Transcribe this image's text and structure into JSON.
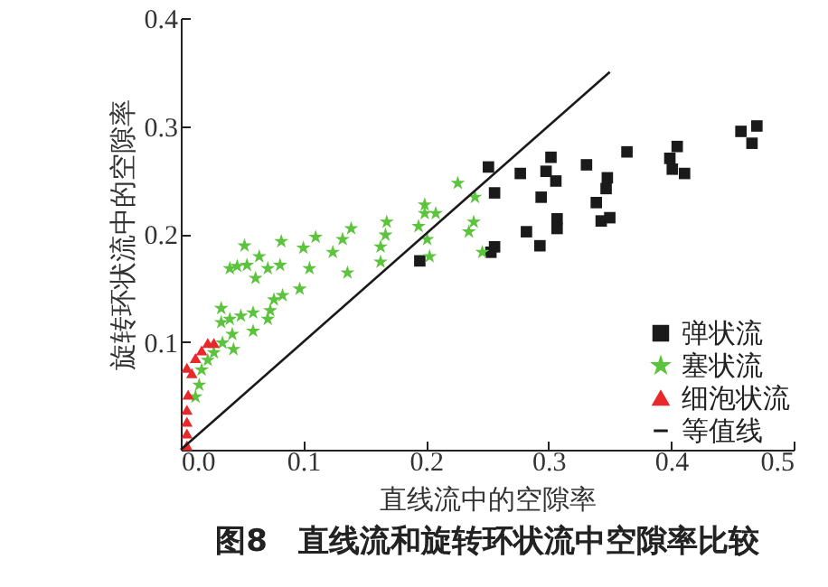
{
  "chart_data": {
    "type": "scatter",
    "title": "图8　直线流和旋转环状流中空隙率比较",
    "xlabel": "直线流中的空隙率",
    "ylabel": "旋转环状流中的空隙率",
    "xlim": [
      0,
      0.5
    ],
    "ylim": [
      0,
      0.4
    ],
    "xticks": [
      {
        "value": 0,
        "label": "0.0"
      },
      {
        "value": 0.1,
        "label": "0.1"
      },
      {
        "value": 0.2,
        "label": "0.2"
      },
      {
        "value": 0.3,
        "label": "0.3"
      },
      {
        "value": 0.4,
        "label": "0.4"
      },
      {
        "value": 0.5,
        "label": "0.5"
      }
    ],
    "yticks": [
      {
        "value": 0,
        "label": null
      },
      {
        "value": 0.1,
        "label": "0.1"
      },
      {
        "value": 0.2,
        "label": "0.2"
      },
      {
        "value": 0.3,
        "label": "0.3"
      },
      {
        "value": 0.4,
        "label": "0.4"
      }
    ],
    "grid": false,
    "legend": "bottom right",
    "series": [
      {
        "name": "弹状流",
        "marker": "square",
        "color": "#1a1a1a",
        "x": [
          0.251,
          0.256,
          0.277,
          0.302,
          0.298,
          0.306,
          0.294,
          0.331,
          0.364,
          0.348,
          0.347,
          0.339,
          0.343,
          0.35,
          0.307,
          0.307,
          0.282,
          0.293,
          0.256,
          0.253,
          0.405,
          0.399,
          0.401,
          0.411,
          0.457,
          0.47,
          0.466,
          0.195
        ],
        "values": [
          0.262,
          0.238,
          0.256,
          0.271,
          0.258,
          0.249,
          0.234,
          0.264,
          0.276,
          0.252,
          0.242,
          0.229,
          0.212,
          0.215,
          0.214,
          0.205,
          0.202,
          0.189,
          0.188,
          0.183,
          0.281,
          0.27,
          0.26,
          0.256,
          0.295,
          0.3,
          0.284,
          0.175
        ]
      },
      {
        "name": "塞状流",
        "marker": "star",
        "color": "#5cc43c",
        "x": [
          0.226,
          0.199,
          0.24,
          0.199,
          0.208,
          0.194,
          0.239,
          0.235,
          0.201,
          0.246,
          0.203,
          0.168,
          0.167,
          0.163,
          0.163,
          0.139,
          0.132,
          0.124,
          0.136,
          0.11,
          0.1,
          0.105,
          0.097,
          0.082,
          0.081,
          0.071,
          0.064,
          0.061,
          0.052,
          0.054,
          0.046,
          0.04,
          0.083,
          0.076,
          0.073,
          0.071,
          0.059,
          0.059,
          0.049,
          0.04,
          0.033,
          0.033,
          0.042,
          0.043,
          0.034,
          0.027,
          0.022,
          0.017,
          0.015,
          0.012
        ],
        "values": [
          0.247,
          0.227,
          0.234,
          0.219,
          0.219,
          0.207,
          0.211,
          0.202,
          0.195,
          0.183,
          0.179,
          0.211,
          0.199,
          0.188,
          0.174,
          0.205,
          0.195,
          0.183,
          0.164,
          0.197,
          0.187,
          0.168,
          0.149,
          0.193,
          0.171,
          0.168,
          0.179,
          0.159,
          0.189,
          0.171,
          0.17,
          0.168,
          0.143,
          0.139,
          0.129,
          0.121,
          0.127,
          0.11,
          0.124,
          0.121,
          0.131,
          0.118,
          0.107,
          0.093,
          0.099,
          0.09,
          0.083,
          0.074,
          0.06,
          0.049
        ]
      },
      {
        "name": "细泡状流",
        "marker": "triangle",
        "color": "#e8282a",
        "x": [
          0.005,
          0.009,
          0.012,
          0.017,
          0.022,
          0.027,
          0.006,
          0.005,
          0.005,
          0.005,
          0.005
        ],
        "values": [
          0.076,
          0.071,
          0.085,
          0.092,
          0.099,
          0.099,
          0.051,
          0.037,
          0.026,
          0.015,
          0.004
        ]
      },
      {
        "name": "等值线",
        "type": "line",
        "marker": "none",
        "color": "#1a1a1a",
        "x": [
          0,
          0.35
        ],
        "values": [
          0,
          0.35
        ]
      }
    ]
  }
}
